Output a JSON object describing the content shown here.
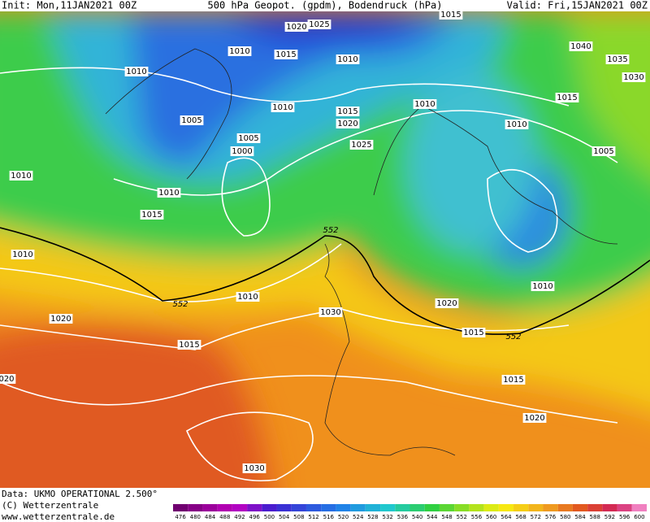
{
  "header": {
    "init": "Init: Mon,11JAN2021 00Z",
    "title": "500 hPa Geopot. (gpdm), Bodendruck (hPa)",
    "valid": "Valid: Fri,15JAN2021 00Z"
  },
  "isobar_labels": [
    "1015",
    "1020",
    "1025",
    "1010",
    "1015",
    "1010",
    "1040",
    "1035",
    "1030",
    "1010",
    "1015",
    "1010",
    "1010",
    "1015",
    "1020",
    "1005",
    "1010",
    "1005",
    "1000",
    "1025",
    "1005",
    "1010",
    "1010",
    "1015",
    "552",
    "1010",
    "1010",
    "552",
    "1010",
    "1020",
    "1020",
    "1030",
    "1015",
    "552",
    "1015",
    "020",
    "1015",
    "1020",
    "1030"
  ],
  "footer": {
    "data": "Data: UKMO OPERATIONAL 2.500°",
    "copyright": "(C) Wetterzentrale",
    "url": "www.wetterzentrale.de"
  },
  "colorbar": [
    476,
    480,
    484,
    488,
    492,
    496,
    500,
    504,
    508,
    512,
    516,
    520,
    524,
    528,
    532,
    536,
    540,
    544,
    548,
    552,
    556,
    560,
    564,
    568,
    572,
    576,
    580,
    584,
    588,
    592,
    596,
    600
  ]
}
